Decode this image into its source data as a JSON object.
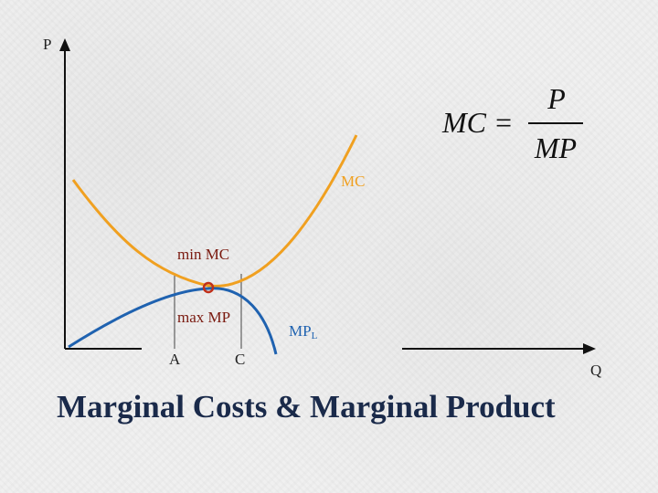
{
  "axes": {
    "y_label": "P",
    "x_label": "Q"
  },
  "curves": {
    "mc": {
      "label": "MC",
      "color": "#f0a020"
    },
    "mp": {
      "label": "MP",
      "subscript": "L",
      "color": "#1f62b0"
    }
  },
  "annotations": {
    "min_mc": "min MC",
    "max_mp": "max MP",
    "tick_a": "A",
    "tick_c": "C",
    "label_color": "#7a1a10"
  },
  "formula": {
    "lhs": "MC =",
    "numerator": "P",
    "denominator": "MP"
  },
  "title": "Marginal Costs & Marginal Product",
  "colors": {
    "axis": "#111111",
    "marker": "#c0301a",
    "title": "#1a2a4a"
  }
}
